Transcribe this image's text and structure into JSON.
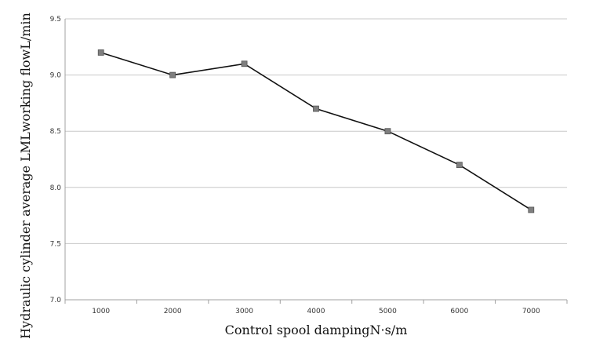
{
  "chart_data": {
    "type": "line",
    "title": "",
    "xlabel": "Control spool dampingN·s/m",
    "ylabel": "Hydraulic cylinder average LMLworking flowL/min",
    "categories": [
      "1000",
      "2000",
      "3000",
      "4000",
      "5000",
      "6000",
      "7000"
    ],
    "series": [
      {
        "values": [
          9.2,
          9.0,
          9.1,
          8.7,
          8.5,
          8.2,
          7.8
        ]
      }
    ],
    "ylim": [
      7.0,
      9.5
    ],
    "yticks": [
      "7.0",
      "7.5",
      "8.0",
      "8.5",
      "9.0",
      "9.5"
    ],
    "grid": "horizontal",
    "legend": "none",
    "colors": {
      "line": "#111111",
      "marker": "#7f7f7f",
      "grid": "#c8c8c8"
    }
  }
}
